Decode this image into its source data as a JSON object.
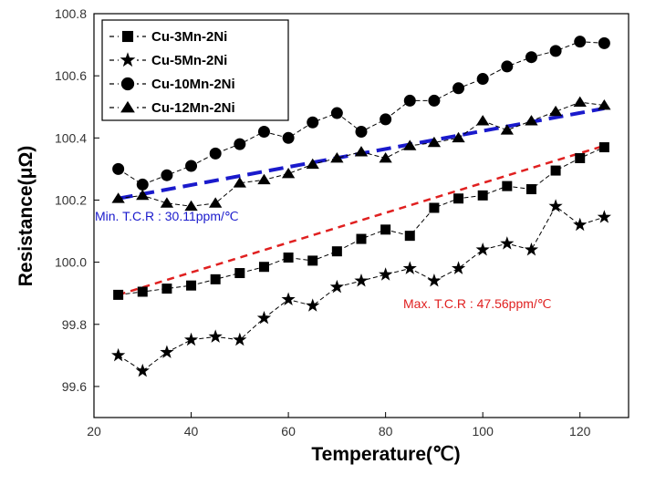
{
  "chart_data": {
    "type": "line",
    "xlabel": "Temperature(℃)",
    "ylabel": "Resistance(μΩ)",
    "xlim": [
      20,
      130
    ],
    "ylim": [
      99.5,
      100.8
    ],
    "xticks": [
      20,
      40,
      60,
      80,
      100,
      120
    ],
    "yticks": [
      99.6,
      99.8,
      100.0,
      100.2,
      100.4,
      100.6,
      100.8
    ],
    "ytick_labels": [
      "99.6",
      "99.8",
      "100.0",
      "100.2",
      "100.4",
      "100.6",
      "100.8"
    ],
    "grid": false,
    "legend_position": "top-left",
    "x": [
      25,
      30,
      35,
      40,
      45,
      50,
      55,
      60,
      65,
      70,
      75,
      80,
      85,
      90,
      95,
      100,
      105,
      110,
      115,
      120,
      125
    ],
    "series": [
      {
        "name": "Cu-3Mn-2Ni",
        "marker": "square",
        "values": [
          99.895,
          99.905,
          99.915,
          99.925,
          99.945,
          99.965,
          99.985,
          100.015,
          100.005,
          100.035,
          100.075,
          100.105,
          100.085,
          100.175,
          100.205,
          100.215,
          100.245,
          100.235,
          100.295,
          100.335,
          100.37
        ]
      },
      {
        "name": "Cu-5Mn-2Ni",
        "marker": "star",
        "values": [
          99.7,
          99.65,
          99.71,
          99.75,
          99.76,
          99.75,
          99.82,
          99.88,
          99.86,
          99.92,
          99.94,
          99.96,
          99.98,
          99.94,
          99.98,
          100.04,
          100.06,
          100.04,
          100.18,
          100.12,
          100.145
        ]
      },
      {
        "name": "Cu-10Mn-2Ni",
        "marker": "circle",
        "values": [
          100.3,
          100.25,
          100.28,
          100.31,
          100.35,
          100.38,
          100.42,
          100.4,
          100.45,
          100.48,
          100.42,
          100.46,
          100.52,
          100.52,
          100.56,
          100.59,
          100.63,
          100.66,
          100.68,
          100.71,
          100.705
        ]
      },
      {
        "name": "Cu-12Mn-2Ni",
        "marker": "triangle",
        "values": [
          100.205,
          100.215,
          100.19,
          100.18,
          100.19,
          100.255,
          100.265,
          100.285,
          100.315,
          100.335,
          100.355,
          100.335,
          100.375,
          100.385,
          100.4,
          100.455,
          100.425,
          100.455,
          100.485,
          100.515,
          100.505
        ]
      }
    ],
    "fit_lines": [
      {
        "color": "#1a1acc",
        "x": [
          25,
          125
        ],
        "y": [
          100.205,
          100.495
        ]
      },
      {
        "color": "#e02020",
        "x": [
          25,
          125
        ],
        "y": [
          99.895,
          100.375
        ]
      }
    ],
    "annotations": [
      {
        "text": "Min. T.C.R : 30.11ppm/℃",
        "color": "#1a1acc"
      },
      {
        "text": "Max. T.C.R : 47.56ppm/℃",
        "color": "#e02020"
      }
    ]
  }
}
